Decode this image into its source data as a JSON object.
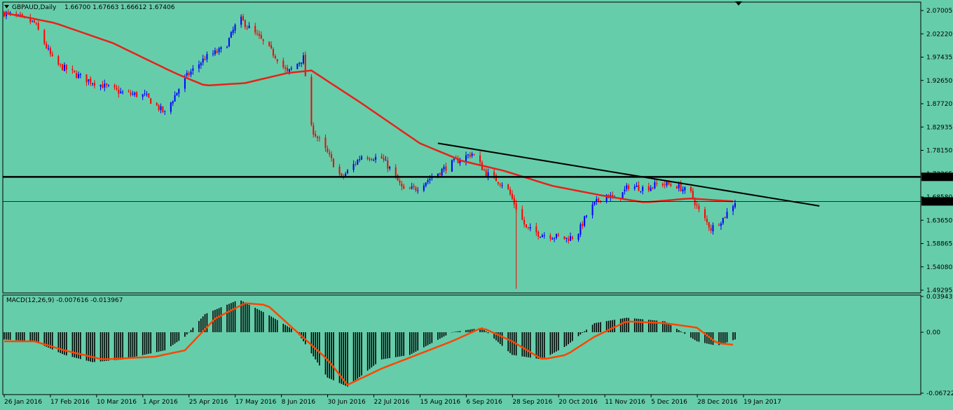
{
  "chart_data": {
    "type": "candlestick",
    "symbol_label": "GBPAUD,Daily",
    "ohlc_label": "1.66700 1.67663 1.66612 1.67406",
    "x_ticks": [
      "26 Jan 2016",
      "17 Feb 2016",
      "10 Mar 2016",
      "1 Apr 2016",
      "25 Apr 2016",
      "17 May 2016",
      "8 Jun 2016",
      "30 Jun 2016",
      "22 Jul 2016",
      "15 Aug 2016",
      "6 Sep 2016",
      "28 Sep 2016",
      "20 Oct 2016",
      "11 Nov 2016",
      "5 Dec 2016",
      "28 Dec 2016",
      "19 Jan 2017"
    ],
    "price_ticks": [
      "2.07005",
      "2.02220",
      "1.97435",
      "1.92650",
      "1.87720",
      "1.82935",
      "1.78150",
      "1.73365",
      "1.68580",
      "1.63650",
      "1.58865",
      "1.54080",
      "1.49295"
    ],
    "price_range": [
      1.49295,
      2.07005
    ],
    "hline_horizontal": 1.72306,
    "hline_horizontal_label": "1.72306",
    "hline_current": 1.67406,
    "hline_current_label": "1.67406",
    "trendline": {
      "from": {
        "date": "2016-08-29",
        "price": 1.79
      },
      "to": {
        "date": "2017-03-07",
        "price": 1.665
      }
    },
    "candles_anchor": [
      [
        "2016-01-26",
        2.05
      ],
      [
        "2016-02-10",
        2.03
      ],
      [
        "2016-02-20",
        1.95
      ],
      [
        "2016-03-05",
        1.92
      ],
      [
        "2016-03-15",
        1.905
      ],
      [
        "2016-03-25",
        1.89
      ],
      [
        "2016-04-05",
        1.885
      ],
      [
        "2016-04-15",
        1.85
      ],
      [
        "2016-04-25",
        1.92
      ],
      [
        "2016-05-05",
        1.96
      ],
      [
        "2016-05-15",
        1.98
      ],
      [
        "2016-05-22",
        2.04
      ],
      [
        "2016-06-01",
        2.0
      ],
      [
        "2016-06-10",
        1.96
      ],
      [
        "2016-06-15",
        1.93
      ],
      [
        "2016-06-23",
        1.96
      ],
      [
        "2016-06-27",
        1.82
      ],
      [
        "2016-07-05",
        1.77
      ],
      [
        "2016-07-12",
        1.72
      ],
      [
        "2016-07-22",
        1.765
      ],
      [
        "2016-08-01",
        1.76
      ],
      [
        "2016-08-05",
        1.74
      ],
      [
        "2016-08-12",
        1.695
      ],
      [
        "2016-08-18",
        1.7
      ],
      [
        "2016-08-25",
        1.72
      ],
      [
        "2016-09-05",
        1.75
      ],
      [
        "2016-09-15",
        1.77
      ],
      [
        "2016-09-22",
        1.73
      ],
      [
        "2016-10-02",
        1.705
      ],
      [
        "2016-10-06",
        1.67
      ],
      [
        "2016-10-12",
        1.62
      ],
      [
        "2016-10-18",
        1.61
      ],
      [
        "2016-10-25",
        1.605
      ],
      [
        "2016-11-01",
        1.6
      ],
      [
        "2016-11-06",
        1.605
      ],
      [
        "2016-11-12",
        1.655
      ],
      [
        "2016-11-20",
        1.69
      ],
      [
        "2016-11-26",
        1.675
      ],
      [
        "2016-12-02",
        1.705
      ],
      [
        "2016-12-10",
        1.7
      ],
      [
        "2016-12-18",
        1.71
      ],
      [
        "2016-12-26",
        1.705
      ],
      [
        "2017-01-02",
        1.69
      ],
      [
        "2017-01-06",
        1.655
      ],
      [
        "2017-01-12",
        1.62
      ],
      [
        "2017-01-18",
        1.64
      ],
      [
        "2017-01-24",
        1.674
      ]
    ],
    "ma_fast_anchor": [
      [
        "2016-01-26",
        2.05
      ],
      [
        "2016-02-20",
        2.03
      ],
      [
        "2016-03-20",
        1.99
      ],
      [
        "2016-04-20",
        1.93
      ],
      [
        "2016-05-05",
        1.905
      ],
      [
        "2016-05-25",
        1.91
      ],
      [
        "2016-06-15",
        1.93
      ],
      [
        "2016-06-27",
        1.935
      ],
      [
        "2016-07-20",
        1.875
      ],
      [
        "2016-08-20",
        1.79
      ],
      [
        "2016-09-10",
        1.755
      ],
      [
        "2016-10-01",
        1.735
      ],
      [
        "2016-10-25",
        1.705
      ],
      [
        "2016-11-20",
        1.685
      ],
      [
        "2016-12-10",
        1.672
      ],
      [
        "2017-01-01",
        1.68
      ],
      [
        "2017-01-24",
        1.674
      ]
    ],
    "ma_slow_anchor": [
      [
        "2016-01-26",
        2.06
      ],
      [
        "2016-02-20",
        2.04
      ],
      [
        "2016-03-20",
        1.99
      ],
      [
        "2016-04-20",
        1.93
      ],
      [
        "2016-05-05",
        1.905
      ],
      [
        "2016-05-25",
        1.91
      ],
      [
        "2016-06-15",
        1.93
      ],
      [
        "2016-06-27",
        1.935
      ],
      [
        "2016-07-20",
        1.875
      ],
      [
        "2016-08-20",
        1.79
      ],
      [
        "2016-09-10",
        1.755
      ],
      [
        "2016-10-01",
        1.735
      ],
      [
        "2016-10-25",
        1.705
      ],
      [
        "2016-11-20",
        1.685
      ],
      [
        "2016-12-10",
        1.672
      ],
      [
        "2017-01-01",
        1.68
      ],
      [
        "2017-01-24",
        1.674
      ]
    ],
    "macd": {
      "label": "MACD(12,26,9) -0.007616 -0.013967",
      "ticks": [
        "0.039439",
        "0.00",
        "-0.067222"
      ],
      "range": [
        -0.067222,
        0.039439
      ],
      "hist_anchor": [
        [
          "2016-01-26",
          -0.008
        ],
        [
          "2016-02-10",
          -0.01
        ],
        [
          "2016-02-25",
          -0.025
        ],
        [
          "2016-03-10",
          -0.033
        ],
        [
          "2016-03-25",
          -0.03
        ],
        [
          "2016-04-15",
          -0.02
        ],
        [
          "2016-04-25",
          -0.005
        ],
        [
          "2016-05-05",
          0.02
        ],
        [
          "2016-05-22",
          0.036
        ],
        [
          "2016-06-05",
          0.02
        ],
        [
          "2016-06-20",
          0.0
        ],
        [
          "2016-07-05",
          -0.05
        ],
        [
          "2016-07-15",
          -0.06
        ],
        [
          "2016-08-01",
          -0.03
        ],
        [
          "2016-08-15",
          -0.025
        ],
        [
          "2016-09-05",
          0.0
        ],
        [
          "2016-09-20",
          0.005
        ],
        [
          "2016-10-05",
          -0.025
        ],
        [
          "2016-10-20",
          -0.03
        ],
        [
          "2016-11-01",
          -0.015
        ],
        [
          "2016-11-15",
          0.01
        ],
        [
          "2016-12-01",
          0.016
        ],
        [
          "2016-12-20",
          0.012
        ],
        [
          "2017-01-05",
          -0.01
        ],
        [
          "2017-01-15",
          -0.015
        ],
        [
          "2017-01-24",
          -0.008
        ]
      ],
      "signal_anchor": [
        [
          "2016-01-26",
          -0.01
        ],
        [
          "2016-02-10",
          -0.01
        ],
        [
          "2016-02-25",
          -0.02
        ],
        [
          "2016-03-15",
          -0.03
        ],
        [
          "2016-04-10",
          -0.027
        ],
        [
          "2016-04-25",
          -0.02
        ],
        [
          "2016-05-10",
          0.015
        ],
        [
          "2016-05-25",
          0.032
        ],
        [
          "2016-06-05",
          0.03
        ],
        [
          "2016-06-20",
          0.0
        ],
        [
          "2016-07-05",
          -0.03
        ],
        [
          "2016-07-15",
          -0.058
        ],
        [
          "2016-08-01",
          -0.04
        ],
        [
          "2016-08-15",
          -0.028
        ],
        [
          "2016-09-05",
          -0.01
        ],
        [
          "2016-09-20",
          0.005
        ],
        [
          "2016-10-05",
          -0.01
        ],
        [
          "2016-10-20",
          -0.03
        ],
        [
          "2016-11-01",
          -0.025
        ],
        [
          "2016-11-15",
          -0.005
        ],
        [
          "2016-12-01",
          0.012
        ],
        [
          "2016-12-20",
          0.01
        ],
        [
          "2017-01-05",
          0.005
        ],
        [
          "2017-01-15",
          -0.012
        ],
        [
          "2017-01-24",
          -0.014
        ]
      ]
    }
  },
  "colors": {
    "bg": "#66cdaa",
    "bull": "#0000ff",
    "bear": "#ff0000",
    "ma": "#e8211a",
    "signal": "#ff4500",
    "hist": "#000000"
  }
}
